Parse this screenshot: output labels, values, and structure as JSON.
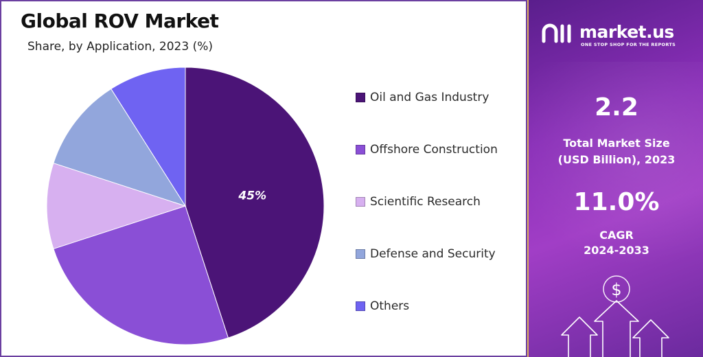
{
  "header": {
    "title": "Global ROV Market",
    "subtitle": "Share, by Application, 2023 (%)"
  },
  "chart_data": {
    "type": "pie",
    "title": "Global ROV Market",
    "subtitle": "Share, by Application, 2023 (%)",
    "categories": [
      "Oil and Gas Industry",
      "Offshore Construction",
      "Scientific Research",
      "Defense and Security",
      "Others"
    ],
    "values": [
      45,
      25,
      10,
      11,
      9
    ],
    "colors": [
      "#4b1477",
      "#8a4fd6",
      "#d7b0f0",
      "#92a6dc",
      "#6f63f2"
    ],
    "data_labels": [
      "45%",
      "",
      "",
      "",
      ""
    ],
    "label_color": "#ffffff",
    "legend_position": "right"
  },
  "sidebar": {
    "brand": {
      "name": "market.us",
      "tagline": "ONE STOP SHOP FOR THE REPORTS",
      "logo_icon": "market-us-logo-icon"
    },
    "stats": [
      {
        "value": "2.2",
        "label_line1": "Total Market Size",
        "label_line2": "(USD Billion), 2023"
      },
      {
        "value": "11.0%",
        "label_line1": "CAGR",
        "label_line2": "2024-2033"
      }
    ],
    "decor_icons": [
      "dollar-sign-icon",
      "arrow-up-icon"
    ],
    "accent_color": "#a13ec6"
  }
}
